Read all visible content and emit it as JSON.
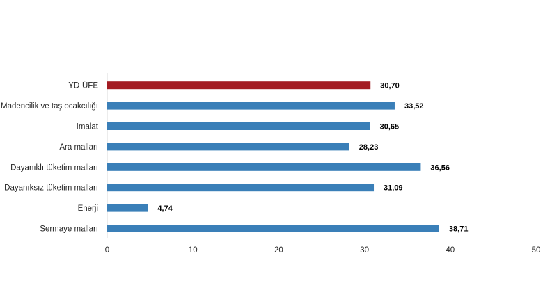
{
  "chart_data": {
    "type": "bar",
    "orientation": "horizontal",
    "title": "",
    "xlabel": "",
    "ylabel": "",
    "categories": [
      "YD-ÜFE",
      "Madencilik ve taş ocakcılığı",
      "İmalat",
      "Ara malları",
      "Dayanıklı tüketim malları",
      "Dayanıksız tüketim malları",
      "Enerji",
      "Sermaye malları"
    ],
    "values": [
      30.7,
      33.52,
      30.65,
      28.23,
      36.56,
      31.09,
      4.74,
      38.71
    ],
    "value_labels": [
      "30,70",
      "33,52",
      "30,65",
      "28,23",
      "36,56",
      "31,09",
      "4,74",
      "38,71"
    ],
    "xlim": [
      0,
      50
    ],
    "xticks": [
      0,
      10,
      20,
      30,
      40,
      50
    ],
    "xtick_labels": [
      "0",
      "10",
      "20",
      "30",
      "40",
      "50"
    ],
    "bar_colors": [
      "#a31b22",
      "#3a7fb8",
      "#3a7fb8",
      "#3a7fb8",
      "#3a7fb8",
      "#3a7fb8",
      "#3a7fb8",
      "#3a7fb8"
    ],
    "grid": false,
    "legend": "none"
  }
}
